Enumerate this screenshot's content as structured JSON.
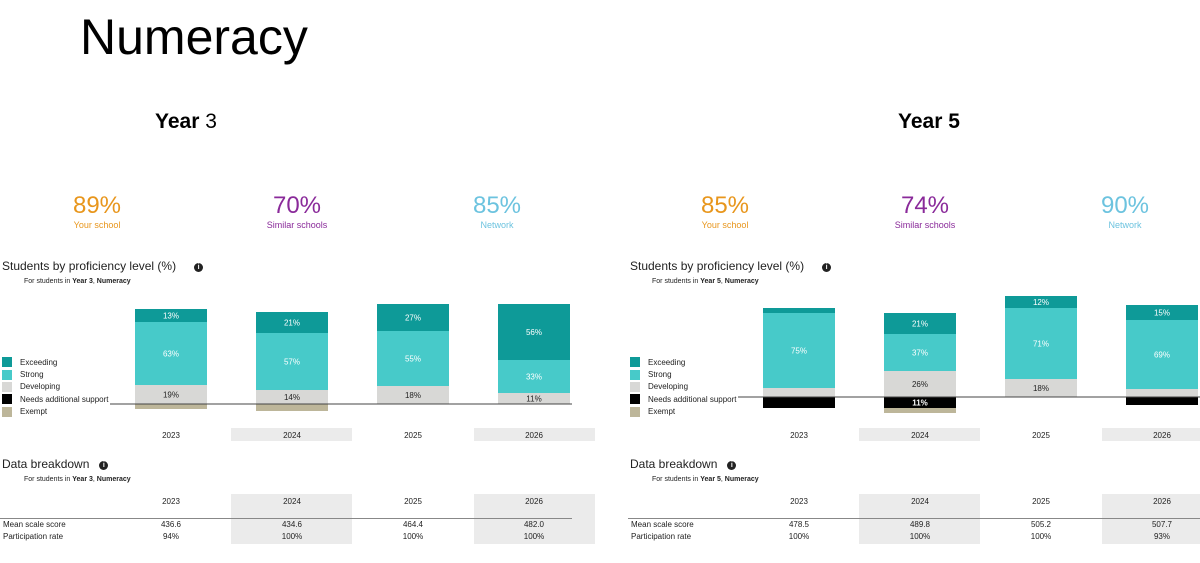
{
  "page_title": "Numeracy",
  "colors": {
    "exceeding": "#0e9a98",
    "strong": "#47cac9",
    "developing": "#d8d8d6",
    "needs": "#000000",
    "exempt": "#bdb69a",
    "your_school": "#e8961c",
    "similar": "#8a2a9a",
    "network": "#6cc3df",
    "shade": "#ebebeb"
  },
  "panels": [
    {
      "heading_bold": "Year ",
      "heading_rest": "3",
      "stats": [
        {
          "value": "89%",
          "label": "Your school"
        },
        {
          "value": "70%",
          "label": "Similar schools"
        },
        {
          "value": "85%",
          "label": "Network"
        }
      ],
      "proficiency_title": "Students by proficiency level (%)",
      "info_glyph": "i",
      "proficiency_sub_pre": "For students in ",
      "proficiency_sub_year": "Year 3",
      "proficiency_sub_mid": ", ",
      "proficiency_sub_area": "Numeracy",
      "legend": [
        "Exceeding",
        "Strong",
        "Developing",
        "Needs additional support",
        "Exempt"
      ],
      "breakdown_title": "Data breakdown",
      "breakdown_sub_pre": "For students in ",
      "breakdown_sub_year": "Year 3",
      "breakdown_sub_mid": ", ",
      "breakdown_sub_area": "Numeracy",
      "table_rows": [
        {
          "label": "Mean scale score",
          "values": [
            "436.6",
            "434.6",
            "464.4",
            "482.0"
          ]
        },
        {
          "label": "Participation rate",
          "values": [
            "94%",
            "100%",
            "100%",
            "100%"
          ]
        }
      ]
    },
    {
      "heading_bold": "Year 5",
      "heading_rest": "",
      "stats": [
        {
          "value": "85%",
          "label": "Your school"
        },
        {
          "value": "74%",
          "label": "Similar schools"
        },
        {
          "value": "90%",
          "label": "Network"
        }
      ],
      "proficiency_title": "Students by proficiency level (%)",
      "info_glyph": "i",
      "proficiency_sub_pre": "For students in ",
      "proficiency_sub_year": "Year 5",
      "proficiency_sub_mid": ", ",
      "proficiency_sub_area": "Numeracy",
      "legend": [
        "Exceeding",
        "Strong",
        "Developing",
        "Needs additional support",
        "Exempt"
      ],
      "breakdown_title": "Data breakdown",
      "breakdown_sub_pre": "For students in ",
      "breakdown_sub_year": "Year 5",
      "breakdown_sub_mid": ", ",
      "breakdown_sub_area": "Numeracy",
      "table_rows": [
        {
          "label": "Mean scale score",
          "values": [
            "478.5",
            "489.8",
            "505.2",
            "507.7"
          ]
        },
        {
          "label": "Participation rate",
          "values": [
            "100%",
            "100%",
            "100%",
            "93%"
          ]
        }
      ]
    }
  ],
  "chart_data": [
    {
      "type": "bar",
      "stacked": true,
      "categories": [
        "2023",
        "2024",
        "2025",
        "2026"
      ],
      "series": [
        {
          "name": "Exceeding",
          "values": [
            13,
            21,
            27,
            56
          ],
          "labels": [
            "13%",
            "21%",
            "27%",
            "56%"
          ]
        },
        {
          "name": "Strong",
          "values": [
            63,
            57,
            55,
            33
          ],
          "labels": [
            "63%",
            "57%",
            "55%",
            "33%"
          ]
        },
        {
          "name": "Developing",
          "values": [
            19,
            14,
            18,
            11
          ],
          "labels": [
            "19%",
            "14%",
            "18%",
            "11%"
          ]
        },
        {
          "name": "Needs additional support",
          "values": [
            0,
            0,
            0,
            0
          ],
          "labels": [
            "",
            "",
            "",
            ""
          ]
        },
        {
          "name": "Exempt",
          "values": [
            5,
            7,
            0,
            0
          ],
          "labels": [
            "",
            "",
            "",
            ""
          ]
        }
      ],
      "legend_position": "left"
    },
    {
      "type": "bar",
      "stacked": true,
      "categories": [
        "2023",
        "2024",
        "2025",
        "2026"
      ],
      "series": [
        {
          "name": "Exceeding",
          "values": [
            5,
            21,
            12,
            15
          ],
          "labels": [
            "",
            "21%",
            "12%",
            "15%"
          ]
        },
        {
          "name": "Strong",
          "values": [
            75,
            37,
            71,
            69
          ],
          "labels": [
            "75%",
            "37%",
            "71%",
            "69%"
          ]
        },
        {
          "name": "Developing",
          "values": [
            9,
            26,
            18,
            8
          ],
          "labels": [
            "",
            "26%",
            "18%",
            ""
          ]
        },
        {
          "name": "Needs additional support",
          "values": [
            11,
            11,
            0,
            8
          ],
          "labels": [
            "",
            "11%",
            "",
            ""
          ]
        },
        {
          "name": "Exempt",
          "values": [
            0,
            5,
            0,
            0
          ],
          "labels": [
            "",
            "",
            "",
            ""
          ]
        }
      ],
      "legend_position": "left"
    }
  ]
}
